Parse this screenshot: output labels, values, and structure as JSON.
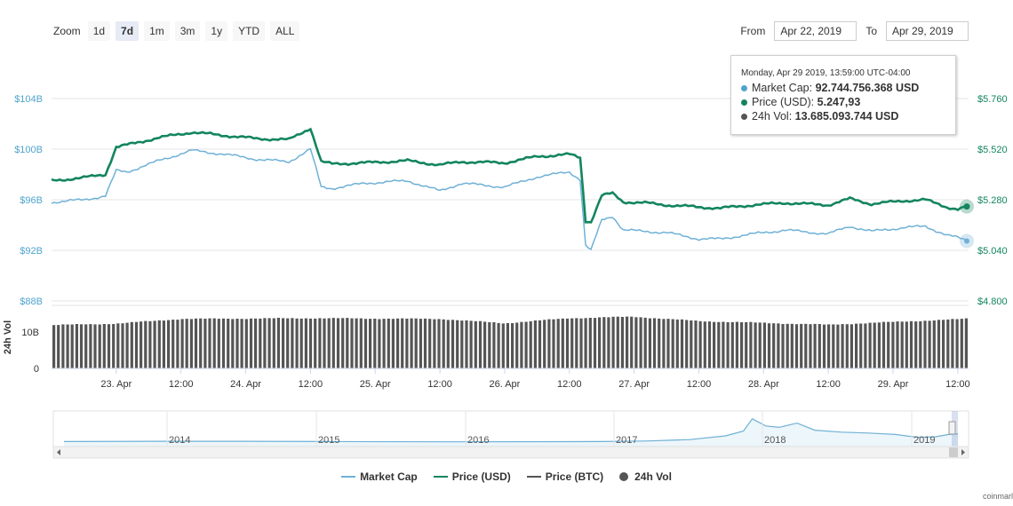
{
  "zoom": {
    "label": "Zoom",
    "buttons": [
      {
        "label": "1d",
        "active": false
      },
      {
        "label": "7d",
        "active": true
      },
      {
        "label": "1m",
        "active": false
      },
      {
        "label": "3m",
        "active": false
      },
      {
        "label": "1y",
        "active": false
      },
      {
        "label": "YTD",
        "active": false
      },
      {
        "label": "ALL",
        "active": false
      }
    ]
  },
  "range": {
    "from_label": "From",
    "from_value": "Apr 22, 2019",
    "to_label": "To",
    "to_value": "Apr 29, 2019"
  },
  "tooltip": {
    "date": "Monday, Apr 29 2019, 13:59:00 UTC-04:00",
    "rows": [
      {
        "label": "Market Cap:",
        "value": "92.744.756.368 USD",
        "color": "#4fa4cc"
      },
      {
        "label": "Price (USD):",
        "value": "5.247,93",
        "color": "#13855e"
      },
      {
        "label": "24h Vol:",
        "value": "13.685.093.744 USD",
        "color": "#555555"
      }
    ]
  },
  "legend": [
    {
      "label": "Market Cap",
      "color": "#6fb1d6",
      "kind": "line"
    },
    {
      "label": "Price (USD)",
      "color": "#13855e",
      "kind": "line"
    },
    {
      "label": "Price (BTC)",
      "color": "#555555",
      "kind": "line"
    },
    {
      "label": "24h Vol",
      "color": "#555555",
      "kind": "dot"
    }
  ],
  "watermark": "coinmarl",
  "colors": {
    "market_cap": "#6fb1d6",
    "price_usd": "#13855e",
    "volume": "#555555",
    "navigator": "#6fb1d6",
    "axis_left": "#4fa4cc",
    "axis_right": "#13855e"
  },
  "chart_data": {
    "type": "line",
    "x_range": [
      "2019-04-22T12:00",
      "2019-04-29T14:00"
    ],
    "left_axis": {
      "ticks": [
        "$88B",
        "$92B",
        "$96B",
        "$100B",
        "$104B"
      ],
      "values": [
        88,
        92,
        96,
        100,
        104
      ],
      "unit": "B USD"
    },
    "right_axis": {
      "ticks": [
        "$4.800",
        "$5.040",
        "$5.280",
        "$5.520",
        "$5.760"
      ],
      "values": [
        4800,
        5040,
        5280,
        5520,
        5760
      ]
    },
    "x_ticks": [
      "23. Apr",
      "12:00",
      "24. Apr",
      "12:00",
      "25. Apr",
      "12:00",
      "26. Apr",
      "12:00",
      "27. Apr",
      "12:00",
      "28. Apr",
      "12:00",
      "29. Apr",
      "12:00"
    ],
    "x_tick_hours": [
      12,
      24,
      36,
      48,
      60,
      72,
      84,
      96,
      108,
      120,
      132,
      144,
      156,
      168
    ],
    "series": [
      {
        "name": "Market Cap",
        "hours": [
          0,
          6,
          10,
          12,
          14,
          20,
          26,
          32,
          38,
          44,
          48,
          50,
          52,
          58,
          66,
          72,
          76,
          84,
          90,
          96,
          98,
          99,
          100,
          102,
          104,
          106,
          110,
          114,
          120,
          124,
          130,
          136,
          144,
          148,
          152,
          158,
          162,
          166,
          168,
          170
        ],
        "values": [
          95.8,
          96.0,
          96.3,
          98.3,
          98.2,
          99.1,
          99.9,
          99.6,
          99.2,
          99.0,
          100.0,
          97.0,
          96.9,
          97.3,
          97.5,
          96.7,
          97.3,
          97.0,
          97.8,
          98.2,
          97.6,
          92.4,
          92.0,
          94.4,
          94.7,
          93.6,
          93.5,
          93.4,
          92.9,
          92.9,
          93.3,
          93.6,
          93.3,
          93.9,
          93.5,
          93.8,
          93.9,
          93.2,
          93.0,
          92.74
        ]
      },
      {
        "name": "Price (USD)",
        "hours": [
          0,
          6,
          10,
          12,
          14,
          20,
          26,
          32,
          38,
          44,
          48,
          50,
          52,
          58,
          66,
          72,
          76,
          84,
          90,
          96,
          98,
          99,
          100,
          102,
          104,
          106,
          110,
          114,
          120,
          124,
          130,
          136,
          144,
          148,
          152,
          158,
          162,
          166,
          168,
          170
        ],
        "values": [
          5370,
          5385,
          5400,
          5530,
          5540,
          5575,
          5600,
          5585,
          5570,
          5565,
          5620,
          5460,
          5450,
          5455,
          5465,
          5445,
          5460,
          5455,
          5485,
          5495,
          5480,
          5180,
          5175,
          5300,
          5310,
          5270,
          5265,
          5255,
          5245,
          5240,
          5255,
          5265,
          5255,
          5285,
          5260,
          5275,
          5280,
          5245,
          5235,
          5247.93
        ]
      },
      {
        "name": "24h Vol",
        "hours": [
          0,
          12,
          24,
          48,
          72,
          84,
          96,
          108,
          120,
          144,
          168,
          170
        ],
        "values": [
          11.9,
          12.3,
          13.6,
          13.8,
          13.6,
          12.4,
          13.8,
          14.2,
          13.0,
          12.0,
          13.5,
          13.69
        ]
      }
    ],
    "volume_axis": {
      "ticks": [
        "0",
        "10B"
      ],
      "values": [
        0,
        10
      ],
      "label": "24h Vol"
    },
    "navigator": {
      "labels": [
        "2014",
        "2015",
        "2016",
        "2017",
        "2018",
        "2019"
      ],
      "note": "full history of market cap, selected range Apr 22 – Apr 29, 2019"
    }
  }
}
